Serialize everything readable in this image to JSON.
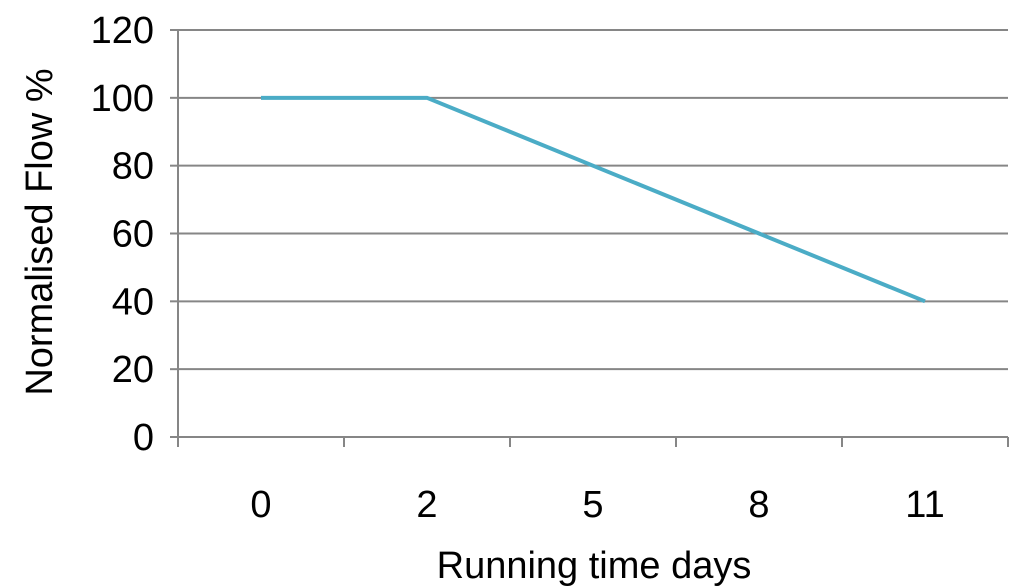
{
  "chart_data": {
    "type": "line",
    "title": "",
    "xlabel": "Running time days",
    "ylabel": "Normalised Flow %",
    "categories": [
      "0",
      "2",
      "5",
      "8",
      "11"
    ],
    "series": [
      {
        "values": [
          100,
          100,
          80,
          60,
          40
        ]
      }
    ],
    "ylim": [
      0,
      120
    ],
    "yticks": [
      "0",
      "20",
      "40",
      "60",
      "80",
      "100",
      "120"
    ],
    "grid": true,
    "legend": "none",
    "colors": {
      "line": "#4BACC6",
      "grid": "#868686",
      "axis": "#868686"
    }
  }
}
